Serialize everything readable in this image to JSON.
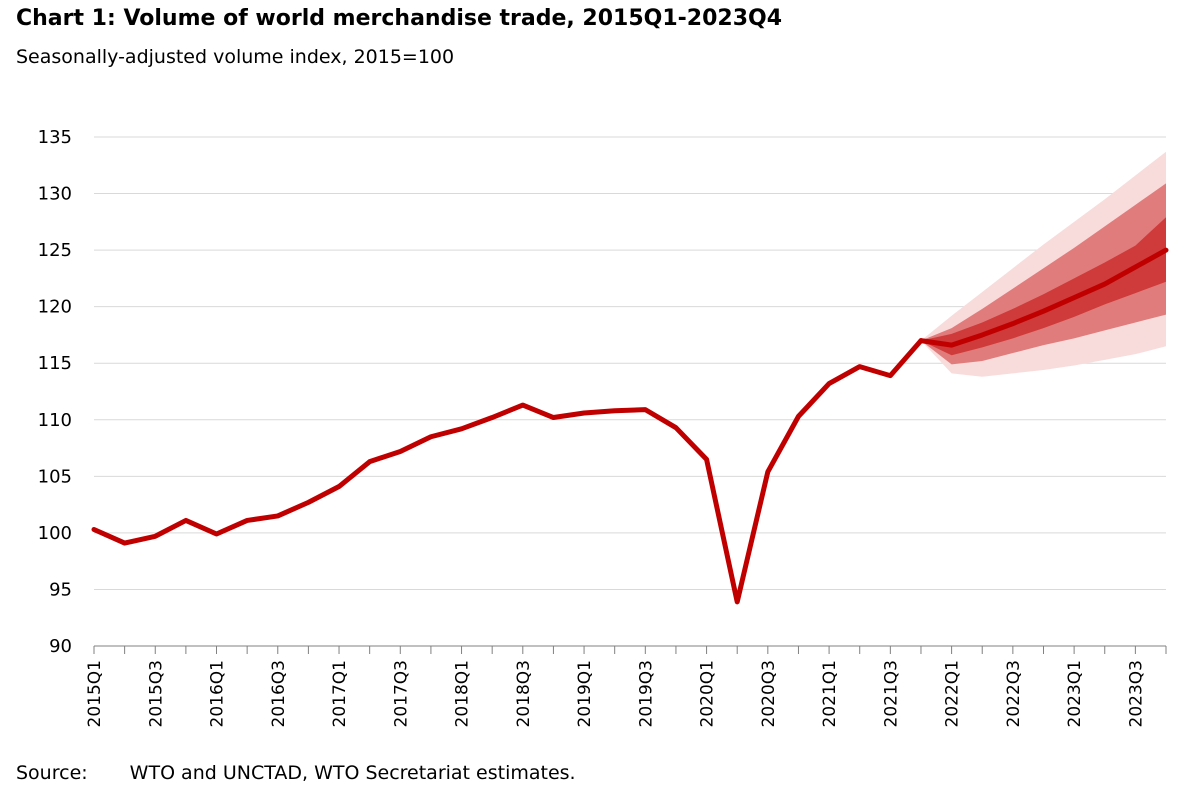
{
  "title": "Chart 1: Volume of world merchandise trade, 2015Q1-2023Q4",
  "subtitle": "Seasonally-adjusted volume index, 2015=100",
  "source_label": "Source:",
  "source_text": "WTO and UNCTAD, WTO Secretariat estimates.",
  "colors": {
    "line": "#c00000",
    "band_outer": "#f8dcdc",
    "band_mid": "#e07c7c",
    "band_inner": "#cf3a3a",
    "grid": "#d9d9d9",
    "axis": "#808080"
  },
  "chart_data": {
    "type": "line",
    "title": "Chart 1: Volume of world merchandise trade, 2015Q1-2023Q4",
    "subtitle": "Seasonally-adjusted volume index, 2015=100",
    "ylim": [
      90,
      135
    ],
    "yticks": [
      90,
      95,
      100,
      105,
      110,
      115,
      120,
      125,
      130,
      135
    ],
    "grid": true,
    "categories": [
      "2015Q1",
      "2015Q2",
      "2015Q3",
      "2015Q4",
      "2016Q1",
      "2016Q2",
      "2016Q3",
      "2016Q4",
      "2017Q1",
      "2017Q2",
      "2017Q3",
      "2017Q4",
      "2018Q1",
      "2018Q2",
      "2018Q3",
      "2018Q4",
      "2019Q1",
      "2019Q2",
      "2019Q3",
      "2019Q4",
      "2020Q1",
      "2020Q2",
      "2020Q3",
      "2020Q4",
      "2021Q1",
      "2021Q2",
      "2021Q3",
      "2021Q4",
      "2022Q1",
      "2022Q2",
      "2022Q3",
      "2022Q4",
      "2023Q1",
      "2023Q2",
      "2023Q3",
      "2023Q4"
    ],
    "tick_labels": [
      "2015Q1",
      "2015Q3",
      "2016Q1",
      "2016Q3",
      "2017Q1",
      "2017Q3",
      "2018Q1",
      "2018Q3",
      "2019Q1",
      "2019Q3",
      "2020Q1",
      "2020Q3",
      "2021Q1",
      "2021Q3",
      "2022Q1",
      "2022Q3",
      "2023Q1",
      "2023Q3"
    ],
    "actual": [
      100.3,
      99.1,
      99.7,
      101.1,
      99.9,
      101.1,
      101.5,
      102.7,
      104.1,
      106.3,
      107.2,
      108.5,
      109.2,
      110.2,
      111.3,
      110.2,
      110.6,
      110.8,
      110.9,
      109.3,
      106.5,
      93.9,
      105.4,
      110.3,
      113.2,
      114.7,
      113.9,
      117.0
    ],
    "forecast": {
      "categories": [
        "2021Q4",
        "2022Q1",
        "2022Q2",
        "2022Q3",
        "2022Q4",
        "2023Q1",
        "2023Q2",
        "2023Q3",
        "2023Q4"
      ],
      "median": [
        117.0,
        116.6,
        117.5,
        118.5,
        119.6,
        120.8,
        122.0,
        123.5,
        125.0
      ],
      "outer_high": [
        117.0,
        119.2,
        121.3,
        123.4,
        125.5,
        127.5,
        129.5,
        131.6,
        133.7
      ],
      "outer_low": [
        117.0,
        114.1,
        113.8,
        114.1,
        114.4,
        114.8,
        115.3,
        115.8,
        116.5
      ],
      "mid_high": [
        117.0,
        118.1,
        119.8,
        121.6,
        123.4,
        125.2,
        127.1,
        129.0,
        130.9
      ],
      "mid_low": [
        117.0,
        114.9,
        115.2,
        115.9,
        116.6,
        117.2,
        117.9,
        118.6,
        119.3
      ],
      "inner_high": [
        117.0,
        117.6,
        118.6,
        119.8,
        121.1,
        122.5,
        123.9,
        125.4,
        127.9
      ],
      "inner_low": [
        117.0,
        115.7,
        116.4,
        117.2,
        118.1,
        119.1,
        120.2,
        121.2,
        122.2
      ]
    }
  }
}
